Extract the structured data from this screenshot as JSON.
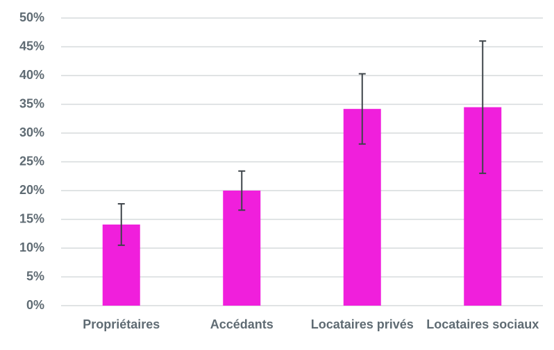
{
  "chart_data": {
    "type": "bar",
    "categories": [
      "Propriétaires",
      "Accédants",
      "Locataires privés",
      "Locataires sociaux"
    ],
    "values": [
      14.1,
      20,
      34.2,
      34.5
    ],
    "errors": [
      3.6,
      3.4,
      6.1,
      11.5
    ],
    "color": "#f01fdc",
    "error_color": "#3d4449",
    "ylim": [
      0,
      50
    ],
    "yticks": [
      {
        "value": 0,
        "label": "0%"
      },
      {
        "value": 5,
        "label": "5%"
      },
      {
        "value": 10,
        "label": "10%"
      },
      {
        "value": 15,
        "label": "15%"
      },
      {
        "value": 20,
        "label": "20%"
      },
      {
        "value": 25,
        "label": "25%"
      },
      {
        "value": 30,
        "label": "30%"
      },
      {
        "value": 35,
        "label": "35%"
      },
      {
        "value": 40,
        "label": "40%"
      },
      {
        "value": 45,
        "label": "45%"
      },
      {
        "value": 50,
        "label": "50%"
      }
    ],
    "grid": true
  }
}
